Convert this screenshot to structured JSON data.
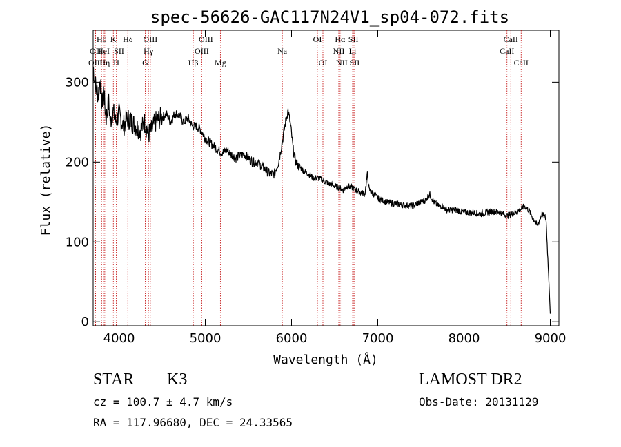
{
  "chart_data": {
    "type": "line",
    "title": "spec-56626-GAC117N24V1_sp04-072.fits",
    "xlabel": "Wavelength (Å)",
    "ylabel": "Flux (relative)",
    "xlim": [
      3700,
      9100
    ],
    "ylim": [
      -5,
      365
    ],
    "xticks": [
      4000,
      5000,
      6000,
      7000,
      8000,
      9000
    ],
    "yticks": [
      0,
      100,
      200,
      300
    ],
    "grid": false,
    "series": [
      {
        "x": [
          3700,
          3720,
          3740,
          3760,
          3780,
          3800,
          3820,
          3850,
          3880,
          3900,
          3930,
          3960,
          4000,
          4050,
          4100,
          4150,
          4200,
          4250,
          4300,
          4340,
          4380,
          4420,
          4480,
          4550,
          4600,
          4650,
          4700,
          4750,
          4800,
          4850,
          4900,
          4950,
          5000,
          5050,
          5100,
          5150,
          5200,
          5250,
          5300,
          5350,
          5400,
          5450,
          5500,
          5550,
          5600,
          5650,
          5700,
          5750,
          5800,
          5850,
          5900,
          5930,
          5960,
          5990,
          6020,
          6050,
          6080,
          6110,
          6150,
          6200,
          6250,
          6300,
          6350,
          6400,
          6450,
          6500,
          6550,
          6600,
          6650,
          6700,
          6750,
          6800,
          6850,
          6880,
          6900,
          6950,
          7000,
          7100,
          7200,
          7300,
          7400,
          7500,
          7550,
          7600,
          7650,
          7700,
          7750,
          7800,
          7900,
          8000,
          8100,
          8200,
          8300,
          8400,
          8500,
          8550,
          8600,
          8650,
          8700,
          8750,
          8800,
          8850,
          8900,
          8950,
          8980,
          9000
        ],
        "y": [
          320,
          300,
          290,
          285,
          305,
          270,
          290,
          255,
          275,
          250,
          265,
          250,
          260,
          245,
          255,
          250,
          245,
          240,
          250,
          235,
          240,
          250,
          255,
          260,
          250,
          262,
          258,
          250,
          255,
          245,
          245,
          240,
          230,
          225,
          220,
          215,
          212,
          215,
          210,
          205,
          208,
          210,
          205,
          200,
          200,
          195,
          190,
          185,
          185,
          200,
          230,
          250,
          265,
          245,
          215,
          200,
          195,
          192,
          188,
          185,
          180,
          180,
          178,
          175,
          172,
          170,
          168,
          165,
          170,
          168,
          165,
          162,
          160,
          185,
          165,
          160,
          155,
          150,
          148,
          146,
          145,
          150,
          152,
          160,
          150,
          145,
          145,
          140,
          140,
          137,
          137,
          135,
          138,
          138,
          133,
          135,
          137,
          140,
          145,
          140,
          130,
          120,
          135,
          130,
          60,
          10
        ]
      }
    ],
    "lines": [
      {
        "label": "Hθ",
        "x": 3798,
        "row": 0
      },
      {
        "label": "OII",
        "x": 3727,
        "row": 1
      },
      {
        "label": "OIII",
        "x": 3727,
        "row": 2
      },
      {
        "label": "HeI",
        "x": 3820,
        "row": 1
      },
      {
        "label": "Hη",
        "x": 3835,
        "row": 2
      },
      {
        "label": "K",
        "x": 3934,
        "row": 0
      },
      {
        "label": "SII",
        "x": 4000,
        "row": 1
      },
      {
        "label": "H",
        "x": 3969,
        "row": 2
      },
      {
        "label": "Hδ",
        "x": 4102,
        "row": 0
      },
      {
        "label": "OIII",
        "x": 4363,
        "row": 0
      },
      {
        "label": "Hγ",
        "x": 4341,
        "row": 1
      },
      {
        "label": "G",
        "x": 4304,
        "row": 2
      },
      {
        "label": "Hβ",
        "x": 4861,
        "row": 2
      },
      {
        "label": "OIII",
        "x": 5007,
        "row": 0
      },
      {
        "label": "OIII",
        "x": 4959,
        "row": 1
      },
      {
        "label": "Mg",
        "x": 5175,
        "row": 2
      },
      {
        "label": "Na",
        "x": 5893,
        "row": 1
      },
      {
        "label": "OI",
        "x": 6300,
        "row": 0
      },
      {
        "label": "OI",
        "x": 6364,
        "row": 2
      },
      {
        "label": "Hα",
        "x": 6563,
        "row": 0
      },
      {
        "label": "NII",
        "x": 6548,
        "row": 1
      },
      {
        "label": "NII",
        "x": 6583,
        "row": 2
      },
      {
        "label": "SII",
        "x": 6717,
        "row": 0
      },
      {
        "label": "Li",
        "x": 6708,
        "row": 1
      },
      {
        "label": "SII",
        "x": 6731,
        "row": 2
      },
      {
        "label": "CaII",
        "x": 8542,
        "row": 0
      },
      {
        "label": "CaII",
        "x": 8498,
        "row": 1
      },
      {
        "label": "CaII",
        "x": 8662,
        "row": 2
      }
    ]
  },
  "info": {
    "class": "STAR",
    "subclass": "K3",
    "survey": "LAMOST DR2",
    "cz": "cz = 100.7 ± 4.7 km/s",
    "obs_date": "Obs-Date: 20131129",
    "radec": "RA = 117.96680, DEC =  24.33565"
  }
}
